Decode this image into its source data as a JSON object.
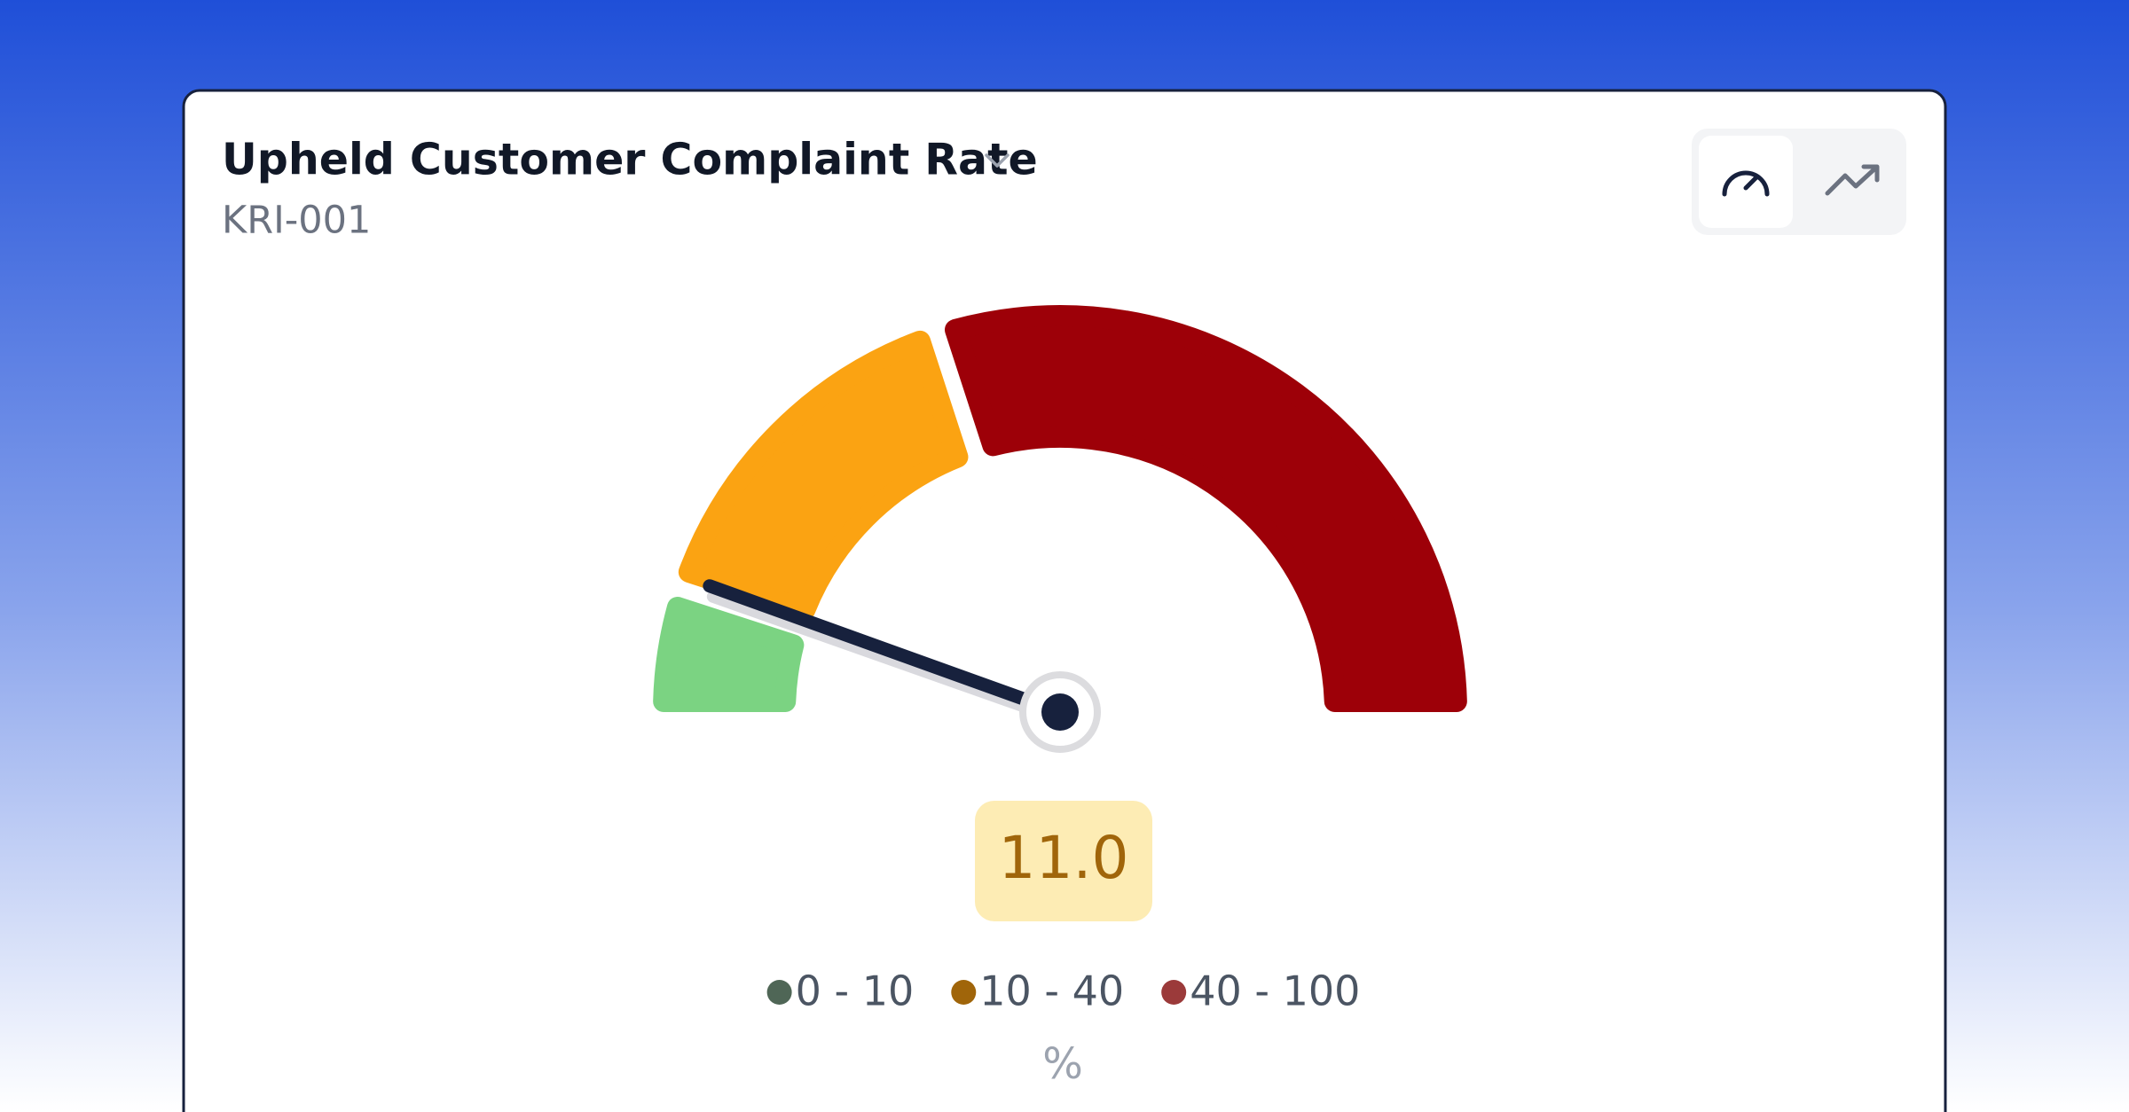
{
  "chart_data": {
    "type": "gauge",
    "title": "Upheld Customer Complaint Rate",
    "subtitle": "KRI-001",
    "value": 11,
    "value_label": "11.0",
    "unit": "%",
    "bands": [
      {
        "name": "0 - 10",
        "from": 0,
        "to": 10,
        "color": "#7bd382",
        "legend_color": "#4f6656"
      },
      {
        "name": "10 - 40",
        "from": 10,
        "to": 40,
        "color": "#fba312",
        "legend_color": "#a0650a"
      },
      {
        "name": "40 - 100",
        "from": 40,
        "to": 100,
        "color": "#9d0008",
        "legend_color": "#9b3a3a"
      }
    ]
  }
}
